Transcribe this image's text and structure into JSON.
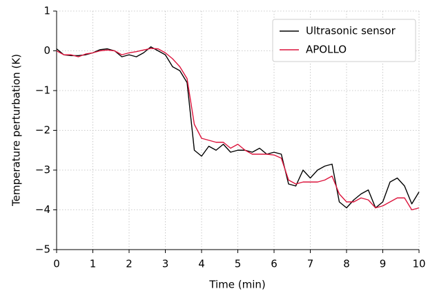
{
  "chart_data": {
    "type": "line",
    "xlabel": "Time (min)",
    "ylabel": "Temperature perturbation (K)",
    "x": [
      0,
      0.2,
      0.4,
      0.6,
      0.8,
      1,
      1.2,
      1.4,
      1.6,
      1.8,
      2,
      2.2,
      2.4,
      2.6,
      2.8,
      3,
      3.2,
      3.4,
      3.6,
      3.8,
      4,
      4.2,
      4.4,
      4.6,
      4.8,
      5,
      5.2,
      5.4,
      5.6,
      5.8,
      6,
      6.2,
      6.4,
      6.6,
      6.8,
      7,
      7.2,
      7.4,
      7.6,
      7.8,
      8,
      8.2,
      8.4,
      8.6,
      8.8,
      9,
      9.2,
      9.4,
      9.6,
      9.8,
      10
    ],
    "series": [
      {
        "name": "Ultrasonic sensor",
        "color": "#000000",
        "values": [
          0.05,
          -0.1,
          -0.12,
          -0.12,
          -0.1,
          -0.05,
          0.03,
          0.05,
          0.0,
          -0.15,
          -0.1,
          -0.15,
          -0.05,
          0.1,
          0.0,
          -0.1,
          -0.4,
          -0.5,
          -0.8,
          -2.5,
          -2.65,
          -2.4,
          -2.5,
          -2.35,
          -2.55,
          -2.5,
          -2.5,
          -2.55,
          -2.45,
          -2.6,
          -2.55,
          -2.6,
          -3.35,
          -3.4,
          -3.0,
          -3.2,
          -3.0,
          -2.9,
          -2.85,
          -3.8,
          -3.95,
          -3.75,
          -3.6,
          -3.5,
          -3.95,
          -3.8,
          -3.3,
          -3.2,
          -3.4,
          -3.85,
          -3.55
        ]
      },
      {
        "name": "APOLLO",
        "color": "#dc143c",
        "values": [
          0.0,
          -0.1,
          -0.1,
          -0.15,
          -0.08,
          -0.05,
          0.0,
          0.02,
          0.0,
          -0.1,
          -0.05,
          -0.02,
          0.02,
          0.06,
          0.05,
          -0.05,
          -0.2,
          -0.4,
          -0.7,
          -1.85,
          -2.2,
          -2.25,
          -2.3,
          -2.3,
          -2.45,
          -2.35,
          -2.5,
          -2.6,
          -2.6,
          -2.6,
          -2.62,
          -2.7,
          -3.25,
          -3.35,
          -3.3,
          -3.3,
          -3.3,
          -3.25,
          -3.15,
          -3.6,
          -3.8,
          -3.8,
          -3.7,
          -3.75,
          -3.95,
          -3.9,
          -3.8,
          -3.7,
          -3.7,
          -4.0,
          -3.95
        ]
      }
    ],
    "xlim": [
      0,
      10
    ],
    "xticks": [
      0,
      1,
      2,
      3,
      4,
      5,
      6,
      7,
      8,
      9,
      10
    ],
    "ylim": [
      -5,
      1
    ],
    "yticks": [
      {
        "value": -5,
        "label": "−5"
      },
      {
        "value": -4,
        "label": "−4"
      },
      {
        "value": -3,
        "label": "−3"
      },
      {
        "value": -2,
        "label": "−2"
      },
      {
        "value": -1,
        "label": "−1"
      },
      0,
      1
    ],
    "grid": true,
    "legend": "upper right"
  }
}
